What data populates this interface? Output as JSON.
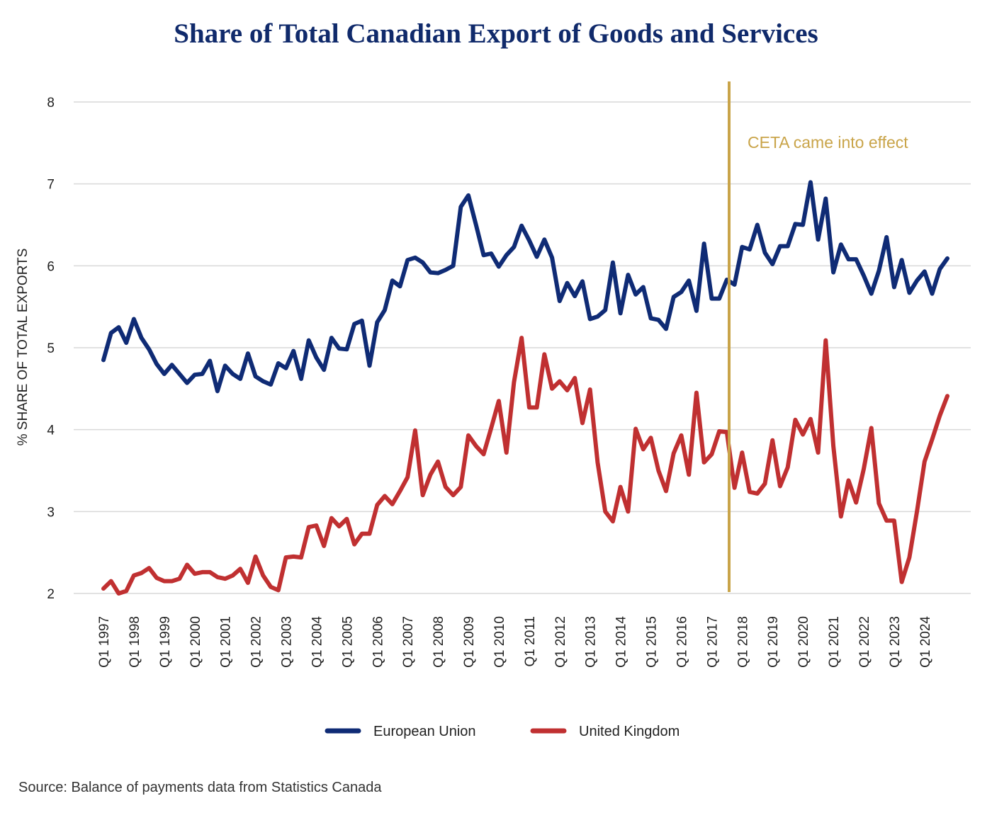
{
  "colors": {
    "title": "#102a6b",
    "eu": "#0f2b75",
    "uk": "#c03031",
    "annotation": "#c9a449",
    "grid": "#d9d9d9",
    "text": "#222222"
  },
  "chart_data": {
    "type": "line",
    "title": "Share of Total Canadian Export of Goods and Services",
    "xlabel": "",
    "ylabel": "% SHARE OF TOTAL EXPORTS",
    "ylim": [
      2,
      8
    ],
    "yticks": [
      2,
      3,
      4,
      5,
      6,
      7,
      8
    ],
    "grid": true,
    "legend_position": "bottom",
    "x_tick_labels": [
      "Q1 1997",
      "Q1 1998",
      "Q1 1999",
      "Q1 2000",
      "Q1 2001",
      "Q1 2002",
      "Q1 2003",
      "Q1 2004",
      "Q1 2005",
      "Q1 2006",
      "Q1 2007",
      "Q1 2008",
      "Q1 2009",
      "Q1 2010",
      "Q1 2011",
      "Q1 2012",
      "Q1 2013",
      "Q1 2014",
      "Q1 2015",
      "Q1 2016",
      "Q1 2017",
      "Q1 2018",
      "Q1 2019",
      "Q1 2020",
      "Q1 2021",
      "Q1 2022",
      "Q1 2023",
      "Q1 2024"
    ],
    "x_start": "Q1 1997",
    "x_end": "Q4 2024",
    "series": [
      {
        "name": "European Union",
        "color": "#0f2b75",
        "values": [
          4.85,
          5.18,
          5.25,
          5.06,
          5.35,
          5.12,
          4.98,
          4.8,
          4.68,
          4.79,
          4.68,
          4.57,
          4.67,
          4.68,
          4.84,
          4.47,
          4.78,
          4.68,
          4.62,
          4.93,
          4.65,
          4.59,
          4.55,
          4.81,
          4.75,
          4.96,
          4.62,
          5.09,
          4.88,
          4.73,
          5.12,
          4.99,
          4.98,
          5.29,
          5.33,
          4.78,
          5.31,
          5.46,
          5.82,
          5.75,
          6.07,
          6.1,
          6.04,
          5.92,
          5.91,
          5.95,
          6.0,
          6.72,
          6.86,
          6.5,
          6.13,
          6.15,
          5.99,
          6.13,
          6.23,
          6.49,
          6.31,
          6.11,
          6.32,
          6.1,
          5.57,
          5.79,
          5.63,
          5.81,
          5.35,
          5.38,
          5.46,
          6.04,
          5.42,
          5.89,
          5.65,
          5.74,
          5.36,
          5.34,
          5.23,
          5.62,
          5.68,
          5.82,
          5.45,
          6.27,
          5.6,
          5.6,
          5.83,
          5.77,
          6.23,
          6.2,
          6.5,
          6.16,
          6.02,
          6.24,
          6.24,
          6.51,
          6.5,
          7.02,
          6.32,
          6.82,
          5.92,
          6.26,
          6.08,
          6.08,
          5.88,
          5.66,
          5.94,
          6.35,
          5.74,
          6.07,
          5.67,
          5.82,
          5.93,
          5.66,
          5.96,
          6.09
        ]
      },
      {
        "name": "United Kingdom",
        "color": "#c03031",
        "values": [
          2.06,
          2.15,
          2.0,
          2.03,
          2.22,
          2.25,
          2.31,
          2.19,
          2.15,
          2.15,
          2.18,
          2.35,
          2.24,
          2.26,
          2.26,
          2.2,
          2.18,
          2.22,
          2.3,
          2.13,
          2.45,
          2.22,
          2.08,
          2.04,
          2.44,
          2.45,
          2.44,
          2.81,
          2.83,
          2.58,
          2.92,
          2.82,
          2.91,
          2.6,
          2.73,
          2.73,
          3.08,
          3.19,
          3.09,
          3.25,
          3.42,
          3.99,
          3.2,
          3.45,
          3.61,
          3.3,
          3.2,
          3.3,
          3.93,
          3.8,
          3.7,
          4.02,
          4.35,
          3.72,
          4.58,
          5.12,
          4.27,
          4.27,
          4.92,
          4.5,
          4.59,
          4.48,
          4.63,
          4.08,
          4.49,
          3.6,
          3.0,
          2.88,
          3.3,
          3.0,
          4.01,
          3.76,
          3.9,
          3.5,
          3.25,
          3.71,
          3.93,
          3.45,
          4.45,
          3.6,
          3.7,
          3.98,
          3.97,
          3.29,
          3.72,
          3.24,
          3.22,
          3.34,
          3.87,
          3.31,
          3.54,
          4.12,
          3.94,
          4.13,
          3.72,
          5.09,
          3.8,
          2.94,
          3.38,
          3.11,
          3.52,
          4.02,
          3.1,
          2.89,
          2.89,
          2.14,
          2.44,
          3.0,
          3.61,
          3.88,
          4.17,
          4.41
        ]
      }
    ],
    "annotations": [
      {
        "text": "CETA came into effect",
        "x": "Q4 2017",
        "kind": "vertical-line"
      }
    ]
  },
  "legend": [
    {
      "label": "European Union",
      "color": "#0f2b75"
    },
    {
      "label": "United Kingdom",
      "color": "#c03031"
    }
  ],
  "source": "Source: Balance of payments data from Statistics Canada"
}
